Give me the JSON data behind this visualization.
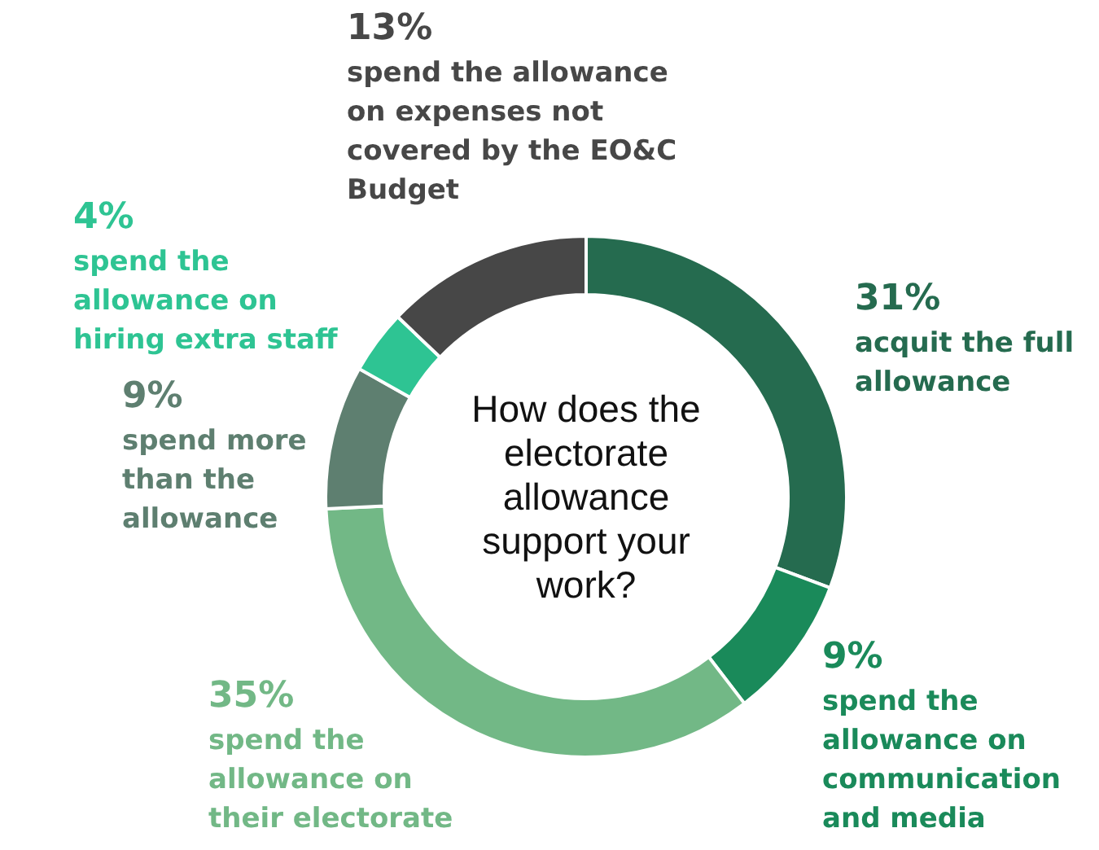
{
  "chart_data": {
    "type": "donut",
    "title": "How does the electorate allowance support your work?",
    "categories": [
      "acquit the full allowance",
      "spend the allowance on communication and media",
      "spend the allowance on their electorate",
      "spend more than the allowance",
      "spend the allowance on hiring extra staff",
      "spend the allowance on expenses not covered by the EO&C Budget"
    ],
    "values": [
      31,
      9,
      35,
      9,
      4,
      13
    ],
    "colors": [
      "#256b4f",
      "#1a8a5a",
      "#72b886",
      "#5e7f70",
      "#2ec493",
      "#474747"
    ],
    "value_labels": [
      "31%",
      "9%",
      "35%",
      "9%",
      "4%",
      "13%"
    ]
  }
}
